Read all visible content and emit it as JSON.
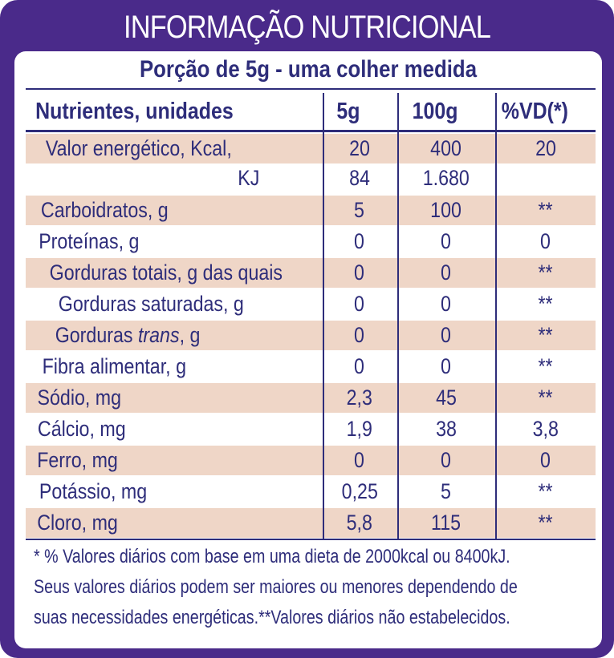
{
  "title": "INFORMAÇÃO NUTRICIONAL",
  "portion": "Porção de 5g - uma colher medida",
  "headers": {
    "nutrient": "Nutrientes, unidades",
    "per_5g": "5g",
    "per_100g": "100g",
    "vd": "%VD(*)"
  },
  "rows": [
    {
      "label": "Valor energético, Kcal,",
      "per_5g": "20",
      "per_100g": "400",
      "vd": "20"
    },
    {
      "label": "KJ",
      "per_5g": "84",
      "per_100g": "1.680",
      "vd": ""
    },
    {
      "label": "Carboidratos, g",
      "per_5g": "5",
      "per_100g": "100",
      "vd": "**"
    },
    {
      "label": "Proteínas, g",
      "per_5g": "0",
      "per_100g": "0",
      "vd": "0"
    },
    {
      "label": "Gorduras totais, g das quais",
      "per_5g": "0",
      "per_100g": "0",
      "vd": "**"
    },
    {
      "label": "Gorduras saturadas, g",
      "per_5g": "0",
      "per_100g": "0",
      "vd": "**"
    },
    {
      "label_prefix": "Gorduras ",
      "label_italic": "trans",
      "label_suffix": ", g",
      "per_5g": "0",
      "per_100g": "0",
      "vd": "**"
    },
    {
      "label": "Fibra alimentar, g",
      "per_5g": "0",
      "per_100g": "0",
      "vd": "**"
    },
    {
      "label": "Sódio, mg",
      "per_5g": "2,3",
      "per_100g": "45",
      "vd": "**"
    },
    {
      "label": "Cálcio, mg",
      "per_5g": "1,9",
      "per_100g": "38",
      "vd": "3,8"
    },
    {
      "label": "Ferro, mg",
      "per_5g": "0",
      "per_100g": "0",
      "vd": "0"
    },
    {
      "label": "Potássio, mg",
      "per_5g": "0,25",
      "per_100g": "5",
      "vd": "**"
    },
    {
      "label": "Cloro, mg",
      "per_5g": "5,8",
      "per_100g": "115",
      "vd": "**"
    }
  ],
  "footnote": {
    "line1": "* % Valores diários com base em uma dieta de 2000kcal ou 8400kJ.",
    "line2": "Seus valores diários podem ser maiores ou menores dependendo de",
    "line3": "suas necessidades energéticas.**Valores diários não estabelecidos."
  },
  "colors": {
    "frame": "#4a2a8a",
    "text": "#2e2d7a",
    "row_shade": "#efd6c7"
  }
}
